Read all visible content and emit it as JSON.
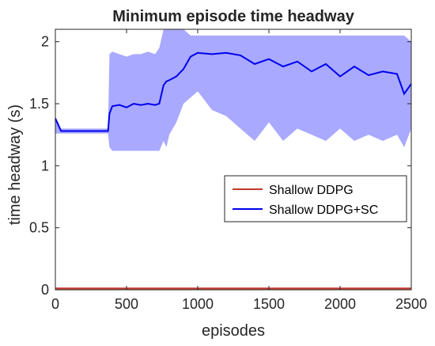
{
  "chart_data": {
    "type": "line",
    "title": "Minimum episode time headway",
    "xlabel": "episodes",
    "ylabel": "time headway (s)",
    "xlim": [
      0,
      2500
    ],
    "ylim": [
      0,
      2.1
    ],
    "xticks": [
      "0",
      "500",
      "1000",
      "1500",
      "2000",
      "2500"
    ],
    "xtick_values": [
      0,
      500,
      1000,
      1500,
      2000,
      2500
    ],
    "yticks": [
      "0",
      "0.5",
      "1",
      "1.5",
      "2"
    ],
    "ytick_values": [
      0,
      0.5,
      1,
      1.5,
      2
    ],
    "grid": false,
    "legend_position": "right",
    "series": [
      {
        "name": "Shallow DDPG",
        "color": "#c0392b",
        "band_color": "#e8a0a0",
        "x": [
          0,
          500,
          1000,
          1500,
          2000,
          2500
        ],
        "values": [
          0.01,
          0.01,
          0.01,
          0.01,
          0.01,
          0.01
        ],
        "band_lower": [
          0.0,
          0.0,
          0.0,
          0.0,
          0.0,
          0.0
        ],
        "band_upper": [
          0.02,
          0.02,
          0.02,
          0.02,
          0.02,
          0.02
        ]
      },
      {
        "name": "Shallow DDPG+SC",
        "color": "#0000ee",
        "band_color": "#8c8cff",
        "x": [
          0,
          40,
          100,
          200,
          300,
          370,
          380,
          400,
          450,
          500,
          550,
          600,
          650,
          700,
          730,
          760,
          780,
          800,
          850,
          900,
          950,
          1000,
          1100,
          1200,
          1300,
          1400,
          1500,
          1600,
          1700,
          1800,
          1900,
          2000,
          2100,
          2200,
          2300,
          2400,
          2450,
          2500
        ],
        "values": [
          1.38,
          1.28,
          1.28,
          1.28,
          1.28,
          1.28,
          1.42,
          1.48,
          1.49,
          1.47,
          1.5,
          1.49,
          1.5,
          1.49,
          1.5,
          1.65,
          1.68,
          1.69,
          1.72,
          1.78,
          1.88,
          1.91,
          1.9,
          1.91,
          1.89,
          1.82,
          1.86,
          1.8,
          1.84,
          1.76,
          1.82,
          1.72,
          1.8,
          1.73,
          1.76,
          1.74,
          1.58,
          1.66
        ],
        "band_lower": [
          1.26,
          1.26,
          1.26,
          1.26,
          1.26,
          1.26,
          1.15,
          1.12,
          1.12,
          1.12,
          1.12,
          1.12,
          1.12,
          1.12,
          1.12,
          1.2,
          1.15,
          1.25,
          1.35,
          1.5,
          1.55,
          1.6,
          1.45,
          1.4,
          1.3,
          1.2,
          1.35,
          1.2,
          1.3,
          1.25,
          1.2,
          1.3,
          1.2,
          1.25,
          1.2,
          1.25,
          1.15,
          1.3
        ],
        "band_upper": [
          1.4,
          1.3,
          1.3,
          1.3,
          1.3,
          1.3,
          1.9,
          1.92,
          1.9,
          1.88,
          1.9,
          1.9,
          1.92,
          1.9,
          1.95,
          2.1,
          2.1,
          2.1,
          2.1,
          2.1,
          2.05,
          2.05,
          2.05,
          2.05,
          2.05,
          2.05,
          2.05,
          2.05,
          2.05,
          2.05,
          2.05,
          2.05,
          2.05,
          2.05,
          2.05,
          2.05,
          2.05,
          2.0
        ]
      }
    ]
  }
}
